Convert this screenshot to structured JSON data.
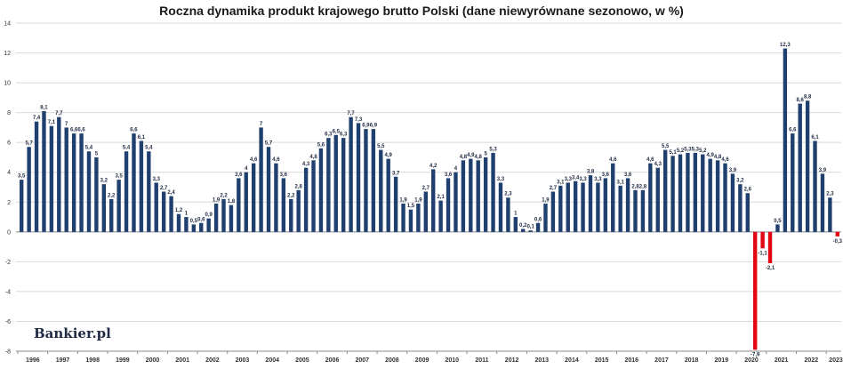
{
  "chart_data": {
    "type": "bar",
    "title": "Roczna dynamika produkt krajowego brutto Polski (dane niewyrównane sezonowo, w %)",
    "xlabel": "",
    "ylabel": "",
    "ylim": [
      -8,
      14
    ],
    "yticks": [
      -8,
      -6,
      -4,
      -2,
      0,
      2,
      4,
      6,
      8,
      10,
      12,
      14
    ],
    "year_labels": [
      "1996",
      "1997",
      "1998",
      "1999",
      "2000",
      "2001",
      "2002",
      "2003",
      "2004",
      "2005",
      "2006",
      "2007",
      "2008",
      "2009",
      "2010",
      "2011",
      "2012",
      "2013",
      "2014",
      "2015",
      "2016",
      "2017",
      "2018",
      "2019",
      "2020",
      "2021",
      "2022",
      "2023"
    ],
    "grid": true,
    "series": [
      {
        "values": [
          3.5,
          5.7,
          7.4,
          8.1,
          7.1,
          7.7,
          7.0,
          6.6,
          6.6,
          5.4,
          5.0,
          3.2,
          2.2,
          3.5,
          5.4,
          6.6,
          6.1,
          5.4,
          3.3,
          2.7,
          2.4,
          1.2,
          1.0,
          0.5,
          0.6,
          0.9,
          1.9,
          2.2,
          1.8,
          3.6,
          4.0,
          4.6,
          7.0,
          5.7,
          4.6,
          3.6,
          2.2,
          2.8,
          4.3,
          4.8,
          5.6,
          6.3,
          6.5,
          6.3,
          7.7,
          7.3,
          6.9,
          6.9,
          5.5,
          4.9,
          3.7,
          1.9,
          1.5,
          1.9,
          2.7,
          4.2,
          2.1,
          3.6,
          4.0,
          4.8,
          4.9,
          4.8,
          5.0,
          5.3,
          3.3,
          2.3,
          1.0,
          0.2,
          0.1,
          0.6,
          1.9,
          2.7,
          3.1,
          3.3,
          3.4,
          3.3,
          3.8,
          3.3,
          3.6,
          4.6,
          3.1,
          3.6,
          2.8,
          2.8,
          4.6,
          4.3,
          5.5,
          5.1,
          5.2,
          5.3,
          5.3,
          5.2,
          4.9,
          4.8,
          4.6,
          3.9,
          3.2,
          2.6,
          -7.9,
          -1.1,
          -2.1,
          0.5,
          12.3,
          6.6,
          8.6,
          8.8,
          6.1,
          3.9,
          2.3,
          -0.3
        ],
        "labels": [
          "3,5",
          "5,7",
          "7,4",
          "8,1",
          "7,1",
          "7,7",
          "7",
          "6,6",
          "6,6",
          "5,4",
          "5",
          "3,2",
          "2,2",
          "3,5",
          "5,4",
          "6,6",
          "6,1",
          "5,4",
          "3,3",
          "2,7",
          "2,4",
          "1,2",
          "1",
          "0,5",
          "0,6",
          "0,9",
          "1,9",
          "2,2",
          "1,8",
          "3,6",
          "4",
          "4,6",
          "7",
          "5,7",
          "4,6",
          "3,6",
          "2,2",
          "2,8",
          "4,3",
          "4,8",
          "5,6",
          "6,3",
          "6,5",
          "6,3",
          "7,7",
          "7,3",
          "6,9",
          "6,9",
          "5,5",
          "4,9",
          "3,7",
          "1,9",
          "1,5",
          "1,9",
          "2,7",
          "4,2",
          "2,1",
          "3,6",
          "4",
          "4,8",
          "4,9",
          "4,8",
          "5",
          "5,3",
          "3,3",
          "2,3",
          "1",
          "0,2",
          "0,1",
          "0,6",
          "1,9",
          "2,7",
          "3,1",
          "3,3",
          "3,4",
          "3,3",
          "3,8",
          "3,3",
          "3,6",
          "4,6",
          "3,1",
          "3,6",
          "2,8",
          "2,8",
          "4,6",
          "4,3",
          "5,5",
          "5,1",
          "5,2",
          "5,3",
          "5,3",
          "5,2",
          "4,9",
          "4,8",
          "4,6",
          "3,9",
          "3,2",
          "2,6",
          "-7,9",
          "-1,1",
          "-2,1",
          "0,5",
          "12,3",
          "6,6",
          "8,6",
          "8,8",
          "6,1",
          "3,9",
          "2,3",
          "-0,3"
        ]
      }
    ]
  },
  "colors": {
    "positive": "#1f3f6e",
    "negative": "#e30613",
    "grid": "#d9d9d9"
  },
  "brand": {
    "text": "Bankier.pl"
  }
}
